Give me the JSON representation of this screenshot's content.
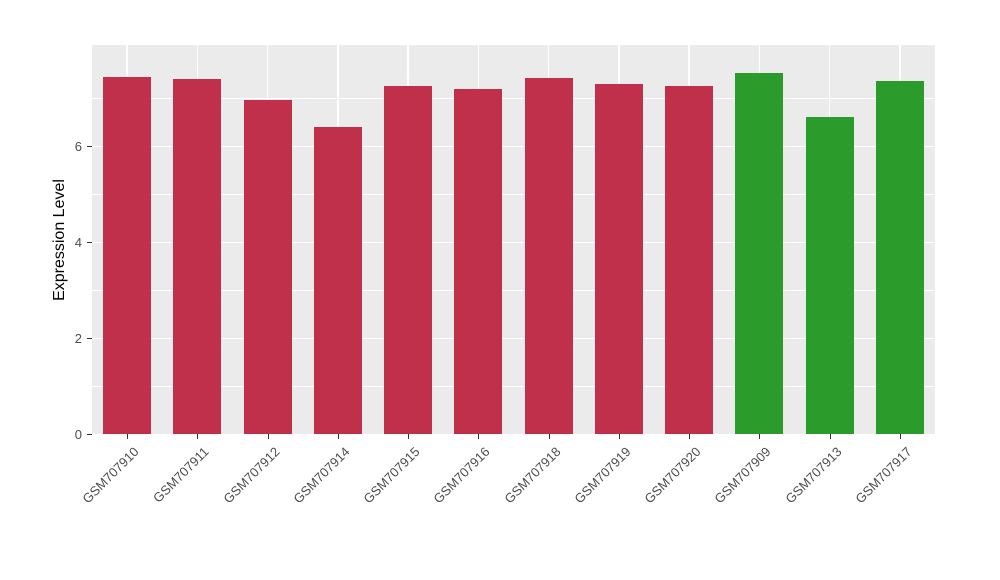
{
  "chart_data": {
    "type": "bar",
    "title": "",
    "xlabel": "",
    "ylabel": "Expression Level",
    "ylim": [
      0,
      8.1
    ],
    "yticks": [
      0,
      2,
      4,
      6
    ],
    "minor_yticks": [
      1,
      3,
      5,
      7
    ],
    "categories": [
      "GSM707910",
      "GSM707911",
      "GSM707912",
      "GSM707914",
      "GSM707915",
      "GSM707916",
      "GSM707918",
      "GSM707919",
      "GSM707920",
      "GSM707909",
      "GSM707913",
      "GSM707917"
    ],
    "values": [
      7.44,
      7.4,
      6.96,
      6.4,
      7.25,
      7.18,
      7.42,
      7.28,
      7.24,
      7.52,
      6.6,
      7.36
    ],
    "bar_colors": [
      "#C0304A",
      "#C0304A",
      "#C0304A",
      "#C0304A",
      "#C0304A",
      "#C0304A",
      "#C0304A",
      "#C0304A",
      "#C0304A",
      "#2B9B2B",
      "#2B9B2B",
      "#2B9B2B"
    ],
    "legend": "none",
    "grid": "on",
    "panel_background": "#EBEBEB",
    "grid_color": "#FFFFFF",
    "axis_text_color": "#4D4D4D"
  }
}
